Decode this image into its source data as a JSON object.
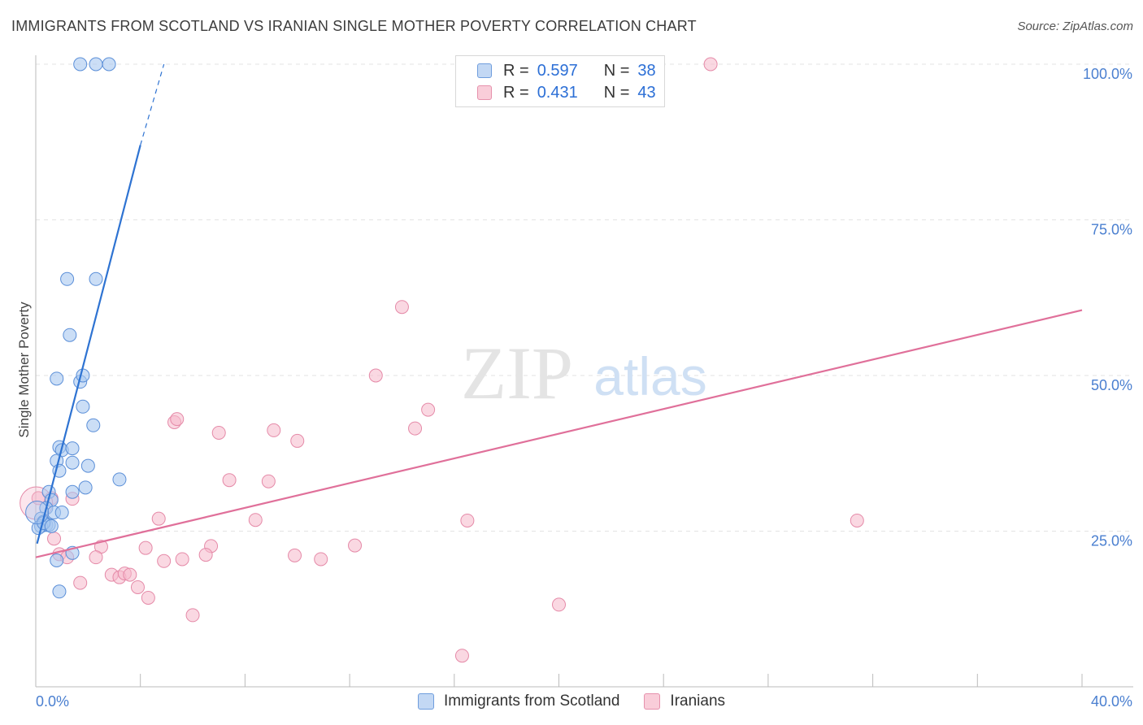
{
  "header": {
    "title": "IMMIGRANTS FROM SCOTLAND VS IRANIAN SINGLE MOTHER POVERTY CORRELATION CHART",
    "source": "Source: ZipAtlas.com"
  },
  "legend_stats": {
    "r_label": "R =",
    "n_label": "N =",
    "series": [
      {
        "r": "0.597",
        "n": "38"
      },
      {
        "r": "0.431",
        "n": "43"
      }
    ]
  },
  "watermark": {
    "zip": "ZIP",
    "atlas": "atlas"
  },
  "colors": {
    "scotland_fill": "#a9c8f0",
    "scotland_stroke": "#5b8fd8",
    "scotland_line": "#2e73d2",
    "iranian_fill": "#f6b8cb",
    "iranian_stroke": "#e58aa8",
    "iranian_line": "#e0709a",
    "tick_text": "#4a7fd0",
    "grid": "#e3e3e3"
  },
  "chart_data": {
    "type": "scatter",
    "xlabel": "",
    "ylabel": "Single Mother Poverty",
    "xlim": [
      0,
      40
    ],
    "ylim": [
      0,
      100
    ],
    "x_tick_labels": [
      "0.0%",
      "40.0%"
    ],
    "y_tick_labels": [
      "25.0%",
      "50.0%",
      "75.0%",
      "100.0%"
    ],
    "y_ticks": [
      25,
      50,
      75,
      100
    ],
    "grid": "horizontal dashed",
    "legend_position": "bottom",
    "series": [
      {
        "name": "Immigrants from Scotland",
        "color_key": "scotland",
        "points": [
          [
            1.7,
            100
          ],
          [
            2.3,
            100
          ],
          [
            2.8,
            100
          ],
          [
            1.2,
            65.5
          ],
          [
            2.3,
            65.5
          ],
          [
            1.3,
            56.5
          ],
          [
            0.8,
            49.5
          ],
          [
            1.7,
            49.0
          ],
          [
            1.8,
            50.0
          ],
          [
            1.8,
            45.0
          ],
          [
            2.2,
            42.0
          ],
          [
            0.9,
            38.5
          ],
          [
            1.0,
            38.0
          ],
          [
            1.4,
            38.3
          ],
          [
            0.8,
            36.3
          ],
          [
            2.0,
            35.5
          ],
          [
            0.9,
            34.7
          ],
          [
            1.4,
            36.0
          ],
          [
            3.2,
            33.3
          ],
          [
            1.9,
            32.0
          ],
          [
            1.4,
            31.3
          ],
          [
            0.5,
            31.3
          ],
          [
            0.6,
            30.0
          ],
          [
            0.4,
            28.7
          ],
          [
            0.7,
            28.0
          ],
          [
            1.0,
            28.0
          ],
          [
            0.2,
            27.0
          ],
          [
            0.3,
            26.5
          ],
          [
            0.4,
            26.0
          ],
          [
            0.5,
            26.0
          ],
          [
            0.2,
            25.8
          ],
          [
            0.1,
            25.5
          ],
          [
            0.3,
            26.3
          ],
          [
            0.6,
            25.8
          ],
          [
            1.4,
            21.5
          ],
          [
            0.8,
            20.3
          ],
          [
            0.9,
            15.3
          ],
          [
            0.05,
            28.0
          ]
        ],
        "trend": {
          "x0": 0.05,
          "y0": 23.0,
          "x1": 4.0,
          "y1": 87.0,
          "dash_to_x": 4.9,
          "dash_to_y": 100
        }
      },
      {
        "name": "Iranians",
        "color_key": "iranian",
        "points": [
          [
            25.8,
            100
          ],
          [
            14.0,
            61.0
          ],
          [
            13.0,
            50.0
          ],
          [
            15.0,
            44.5
          ],
          [
            5.3,
            42.5
          ],
          [
            5.4,
            43.0
          ],
          [
            14.5,
            41.5
          ],
          [
            7.0,
            40.8
          ],
          [
            9.1,
            41.2
          ],
          [
            10.0,
            39.5
          ],
          [
            7.4,
            33.2
          ],
          [
            8.9,
            33.0
          ],
          [
            0.1,
            30.3
          ],
          [
            0.6,
            30.3
          ],
          [
            1.4,
            30.2
          ],
          [
            4.7,
            27.0
          ],
          [
            8.4,
            26.8
          ],
          [
            16.5,
            26.7
          ],
          [
            31.4,
            26.7
          ],
          [
            0.7,
            23.8
          ],
          [
            2.5,
            22.5
          ],
          [
            4.2,
            22.3
          ],
          [
            6.7,
            22.6
          ],
          [
            12.2,
            22.7
          ],
          [
            0.9,
            21.3
          ],
          [
            1.2,
            20.8
          ],
          [
            2.3,
            20.8
          ],
          [
            4.9,
            20.2
          ],
          [
            5.6,
            20.5
          ],
          [
            6.5,
            21.2
          ],
          [
            9.9,
            21.1
          ],
          [
            10.9,
            20.5
          ],
          [
            2.9,
            18.0
          ],
          [
            3.2,
            17.6
          ],
          [
            3.4,
            18.2
          ],
          [
            3.6,
            18.0
          ],
          [
            1.7,
            16.7
          ],
          [
            3.9,
            16.0
          ],
          [
            4.3,
            14.3
          ],
          [
            20.0,
            13.2
          ],
          [
            6.0,
            11.5
          ],
          [
            16.3,
            5.0
          ],
          [
            0.02,
            29.5
          ]
        ],
        "trend": {
          "x0": 0.0,
          "y0": 20.8,
          "x1": 40.0,
          "y1": 60.5
        }
      }
    ]
  },
  "bottom_legend": [
    "Immigrants from Scotland",
    "Iranians"
  ]
}
